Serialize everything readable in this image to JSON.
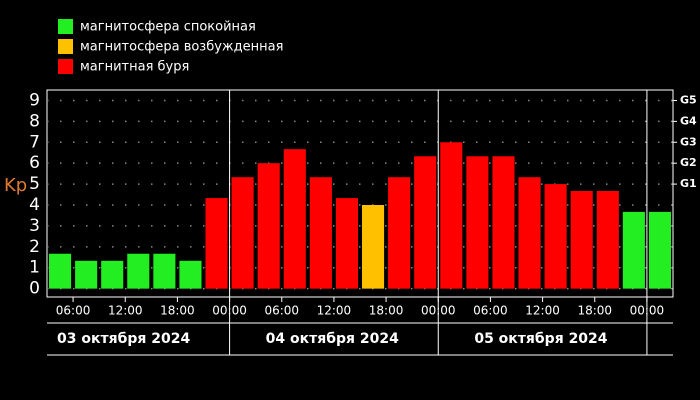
{
  "chart_data": {
    "type": "bar",
    "y_label": "Kp",
    "legend": [
      {
        "name": "магнитосфера спокойная",
        "color": "#22ee22"
      },
      {
        "name": "магнитосфера возбужденная",
        "color": "#ffc000"
      },
      {
        "name": "магнитная буря",
        "color": "#ff0000"
      }
    ],
    "categories": [
      null,
      null,
      null,
      null,
      null,
      null,
      null,
      null,
      null,
      null,
      null,
      null,
      null,
      null,
      null,
      null,
      null,
      null,
      null,
      null,
      null,
      null,
      null,
      null
    ],
    "values": [
      1.67,
      1.33,
      1.33,
      1.67,
      1.67,
      1.33,
      4.33,
      5.33,
      6,
      6.67,
      5.33,
      4.33,
      4,
      5.33,
      6.33,
      7,
      6.33,
      6.33,
      5.33,
      5,
      4.67,
      4.67,
      3.67,
      3.67
    ],
    "bar_colors": [
      "#22ee22",
      "#22ee22",
      "#22ee22",
      "#22ee22",
      "#22ee22",
      "#22ee22",
      "#ff0000",
      "#ff0000",
      "#ff0000",
      "#ff0000",
      "#ff0000",
      "#ff0000",
      "#ffc000",
      "#ff0000",
      "#ff0000",
      "#ff0000",
      "#ff0000",
      "#ff0000",
      "#ff0000",
      "#ff0000",
      "#ff0000",
      "#ff0000",
      "#22ee22",
      "#22ee22"
    ],
    "ylim": [
      -0.4,
      9.5
    ],
    "yticks": [
      0,
      1,
      2,
      3,
      4,
      5,
      6,
      7,
      8,
      9
    ],
    "y2lim": [
      -0.4,
      9.5
    ],
    "y2ticks": [
      {
        "value": 5,
        "label": "G1"
      },
      {
        "value": 6,
        "label": "G2"
      },
      {
        "value": 7,
        "label": "G3"
      },
      {
        "value": 8,
        "label": "G4"
      },
      {
        "value": 9,
        "label": "G5"
      }
    ],
    "xtick_labels": [
      "06:00",
      "12:00",
      "18:00",
      "00:00",
      "06:00",
      "12:00",
      "18:00",
      "00:00",
      "06:00",
      "12:00",
      "18:00",
      "00:00"
    ],
    "days": [
      "03 октября 2024",
      "04 октября 2024",
      "05 октября 2024"
    ],
    "grid": true
  }
}
